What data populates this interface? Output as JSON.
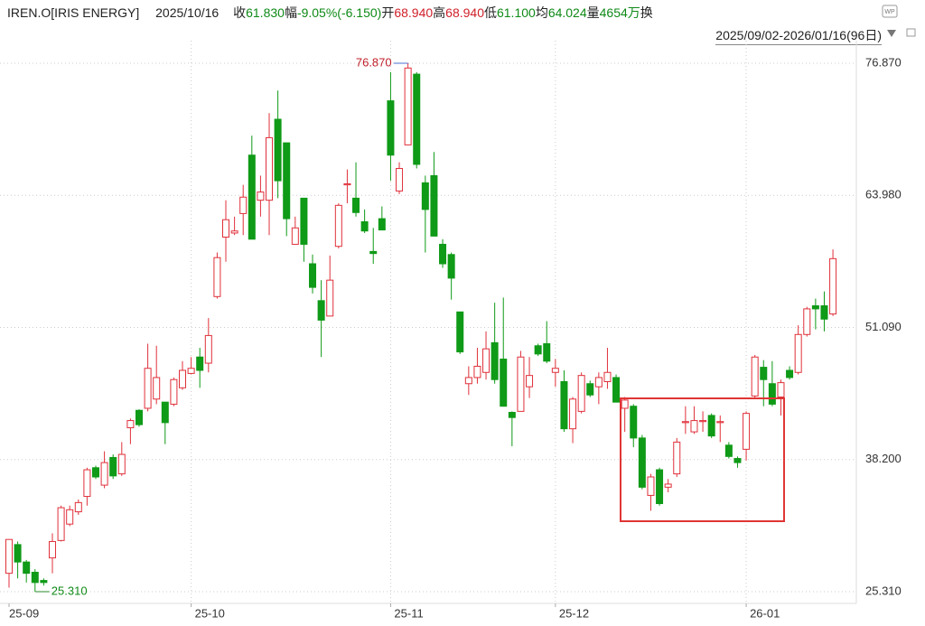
{
  "header": {
    "symbol": "IREN.O[IRIS ENERGY]",
    "date": "2025/10/16",
    "fields": [
      {
        "label": "收",
        "value": "61.830"
      },
      {
        "label": "幅",
        "value": "-9.05%(-6.150)"
      },
      {
        "label": "开",
        "value": "68.940"
      },
      {
        "label": "高",
        "value": "68.940"
      },
      {
        "label": "低",
        "value": "61.100"
      },
      {
        "label": "均",
        "value": "64.024"
      },
      {
        "label": "量",
        "value": "4654万"
      },
      {
        "label": "换",
        "value": ""
      }
    ],
    "range": "2025/09/02-2026/01/16(96日)"
  },
  "chart_data": {
    "type": "candlestick",
    "up_color": "#e0303a",
    "down_color": "#0f9a17",
    "max_label": "76.870",
    "min_label": "25.310",
    "ylim": [
      24.16,
      79.07
    ],
    "yticks": [
      {
        "value": 25.31,
        "label": "25.310"
      },
      {
        "value": 38.2,
        "label": "38.200"
      },
      {
        "value": 51.09,
        "label": "51.090"
      },
      {
        "value": 63.98,
        "label": "63.980"
      },
      {
        "value": 76.87,
        "label": "76.870"
      }
    ],
    "xlim": [
      -1.04,
      97.7
    ],
    "xticks": [
      {
        "value": 0,
        "label": "25-09"
      },
      {
        "value": 21,
        "label": "25-10"
      },
      {
        "value": 44,
        "label": "25-11"
      },
      {
        "value": 63,
        "label": "25-12"
      },
      {
        "value": 85,
        "label": "26-01"
      }
    ],
    "grid": true,
    "open": [
      27.1,
      29.9,
      28.2,
      27.2,
      26.4,
      28.6,
      30.3,
      31.9,
      33.1,
      34.6,
      37.4,
      35.7,
      38.4,
      36.8,
      41.3,
      43.0,
      43.2,
      44.1,
      43.8,
      43.6,
      45.2,
      46.6,
      48.2,
      47.6,
      54.1,
      59.9,
      60.3,
      62.2,
      67.9,
      63.5,
      63.5,
      71.4,
      69.1,
      59.2,
      63.7,
      57.3,
      53.7,
      52.2,
      59.0,
      65.0,
      63.7,
      61.4,
      58.5,
      61.7,
      73.2,
      64.4,
      68.9,
      75.8,
      65.2,
      65.9,
      59.2,
      58.2,
      52.6,
      45.6,
      46.2,
      46.7,
      49.6,
      48.0,
      42.8,
      42.9,
      45.3,
      49.3,
      49.5,
      46.7,
      45.8,
      41.2,
      42.9,
      45.6,
      45.3,
      45.8,
      46.2,
      43.2,
      43.4,
      40.3,
      34.7,
      37.2,
      35.5,
      36.8,
      41.8,
      40.9,
      41.9,
      42.5,
      41.8,
      39.6,
      38.3,
      39.2,
      44.4,
      47.2,
      45.6,
      44.3,
      46.9,
      46.7,
      50.4,
      53.2,
      53.2,
      52.4
    ],
    "high": [
      30.4,
      30.2,
      28.4,
      27.5,
      26.6,
      31.0,
      33.7,
      33.7,
      34.3,
      37.4,
      37.6,
      39.0,
      38.7,
      39.9,
      42.2,
      43.1,
      49.5,
      49.3,
      43.8,
      46.2,
      47.8,
      48.2,
      49.1,
      52.0,
      58.4,
      63.5,
      61.9,
      65.0,
      69.8,
      65.9,
      72.0,
      74.2,
      69.1,
      61.9,
      63.7,
      58.2,
      55.7,
      58.1,
      63.2,
      66.5,
      67.2,
      62.6,
      60.8,
      62.9,
      76.0,
      67.2,
      76.87,
      76.0,
      65.9,
      68.2,
      59.7,
      58.4,
      52.6,
      47.3,
      49.1,
      50.7,
      53.5,
      54.0,
      42.9,
      48.8,
      48.2,
      49.5,
      51.7,
      48.0,
      46.9,
      44.3,
      46.7,
      45.9,
      46.7,
      49.1,
      46.5,
      44.3,
      43.6,
      40.6,
      36.8,
      37.4,
      36.3,
      40.3,
      43.4,
      43.4,
      42.9,
      42.7,
      42.5,
      39.9,
      38.5,
      42.9,
      48.4,
      47.9,
      47.8,
      46.0,
      47.3,
      51.3,
      53.1,
      53.9,
      54.6,
      58.7
    ],
    "low": [
      25.7,
      26.6,
      26.2,
      25.31,
      25.9,
      27.1,
      30.2,
      31.7,
      32.8,
      33.7,
      36.3,
      35.4,
      36.3,
      36.6,
      39.7,
      41.4,
      42.9,
      43.6,
      39.7,
      43.4,
      45.0,
      46.5,
      45.2,
      46.7,
      53.9,
      57.5,
      60.1,
      60.1,
      59.7,
      61.9,
      60.1,
      63.7,
      60.0,
      59.2,
      57.5,
      54.4,
      48.2,
      52.2,
      58.8,
      63.2,
      61.9,
      60.3,
      57.3,
      60.6,
      65.4,
      64.1,
      68.9,
      66.6,
      58.4,
      60.0,
      56.9,
      53.8,
      48.5,
      44.5,
      45.6,
      46.0,
      45.6,
      43.4,
      39.5,
      42.9,
      44.2,
      48.3,
      47.6,
      45.3,
      40.9,
      39.8,
      42.7,
      44.3,
      43.6,
      45.1,
      43.8,
      40.9,
      39.4,
      35.3,
      33.2,
      33.7,
      35.0,
      36.5,
      40.7,
      40.7,
      40.9,
      40.3,
      39.9,
      38.3,
      37.4,
      38.1,
      44.2,
      43.4,
      43.4,
      42.5,
      46.0,
      46.5,
      50.2,
      50.9,
      50.7,
      52.2
    ],
    "close": [
      30.4,
      28.2,
      27.1,
      26.2,
      26.2,
      30.2,
      33.5,
      33.3,
      34.0,
      37.2,
      36.5,
      37.9,
      36.6,
      38.7,
      42.0,
      41.6,
      47.1,
      46.2,
      41.8,
      46.0,
      46.9,
      47.1,
      46.9,
      50.3,
      57.9,
      61.6,
      60.5,
      63.8,
      59.7,
      64.3,
      69.6,
      65.4,
      61.7,
      60.8,
      59.2,
      55.0,
      51.8,
      55.7,
      63.0,
      65.1,
      62.3,
      60.5,
      58.3,
      60.6,
      67.9,
      66.6,
      76.4,
      67.0,
      62.6,
      60.0,
      57.3,
      55.9,
      48.7,
      46.2,
      47.3,
      49.0,
      46.0,
      43.4,
      42.3,
      48.2,
      46.4,
      48.5,
      47.8,
      47.1,
      41.2,
      44.1,
      46.4,
      44.5,
      46.2,
      46.7,
      43.8,
      44.0,
      40.3,
      35.5,
      36.5,
      33.9,
      35.8,
      39.9,
      41.9,
      42.0,
      42.0,
      40.5,
      41.9,
      38.5,
      37.9,
      42.7,
      48.2,
      46.0,
      43.6,
      45.7,
      46.2,
      50.4,
      52.9,
      52.9,
      51.9,
      57.8
    ]
  }
}
